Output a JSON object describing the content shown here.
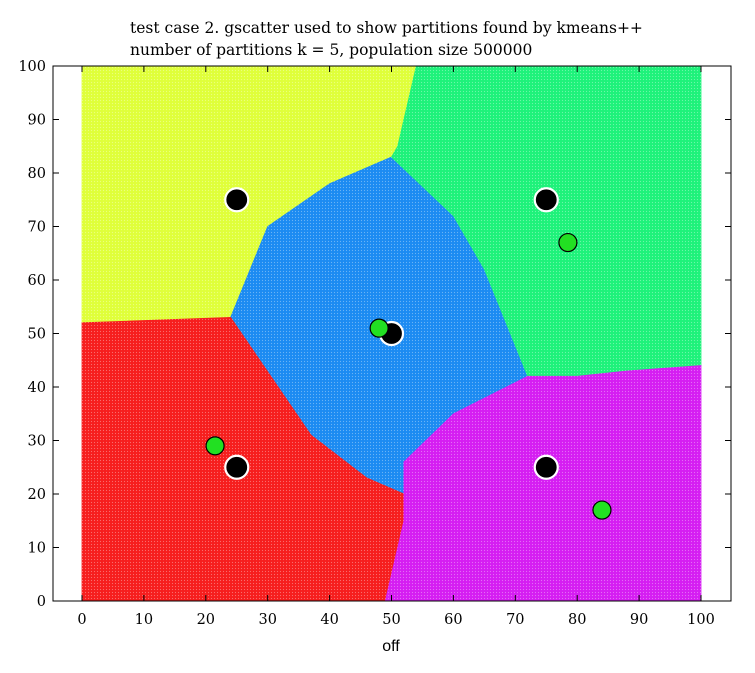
{
  "chart_data": {
    "type": "scatter",
    "title": "test case 2. gscatter used to show partitions found by kmeans++",
    "subtitle": "number of partitions k = 5, population size 500000",
    "xlabel": "off",
    "ylabel": "",
    "xlim": [
      0,
      100
    ],
    "ylim": [
      0,
      100
    ],
    "xticks": [
      "0",
      "10",
      "20",
      "30",
      "40",
      "50",
      "60",
      "70",
      "80",
      "90",
      "100"
    ],
    "yticks": [
      "0",
      "10",
      "20",
      "30",
      "40",
      "50",
      "60",
      "70",
      "80",
      "90",
      "100"
    ],
    "grid": false,
    "partitions": [
      {
        "color": "#dfff3a",
        "polygon": [
          [
            0,
            100
          ],
          [
            54,
            100
          ],
          [
            53,
            95
          ],
          [
            52,
            90
          ],
          [
            51,
            85
          ],
          [
            50,
            83
          ],
          [
            40,
            78
          ],
          [
            30,
            70
          ],
          [
            24,
            53
          ],
          [
            0,
            52
          ]
        ]
      },
      {
        "color": "#1c8bf2",
        "polygon": [
          [
            50,
            83
          ],
          [
            60,
            72
          ],
          [
            65,
            62
          ],
          [
            72,
            42
          ],
          [
            60,
            35
          ],
          [
            52,
            26
          ],
          [
            52,
            20
          ],
          [
            46,
            23
          ],
          [
            37,
            31
          ],
          [
            24,
            53
          ],
          [
            30,
            70
          ],
          [
            40,
            78
          ]
        ]
      },
      {
        "color": "#1ef27a",
        "polygon": [
          [
            54,
            100
          ],
          [
            100,
            100
          ],
          [
            100,
            44
          ],
          [
            88,
            43
          ],
          [
            80,
            42
          ],
          [
            72,
            42
          ],
          [
            65,
            62
          ],
          [
            60,
            72
          ],
          [
            50,
            83
          ],
          [
            51,
            85
          ],
          [
            52,
            90
          ],
          [
            53,
            95
          ]
        ]
      },
      {
        "color": "#f61e1e",
        "polygon": [
          [
            0,
            52
          ],
          [
            24,
            53
          ],
          [
            37,
            31
          ],
          [
            46,
            23
          ],
          [
            52,
            20
          ],
          [
            52,
            15
          ],
          [
            50,
            5
          ],
          [
            49,
            0
          ],
          [
            0,
            0
          ]
        ]
      },
      {
        "color": "#d51ef2",
        "polygon": [
          [
            49,
            0
          ],
          [
            100,
            0
          ],
          [
            100,
            44
          ],
          [
            88,
            43
          ],
          [
            80,
            42
          ],
          [
            72,
            42
          ],
          [
            60,
            35
          ],
          [
            52,
            26
          ],
          [
            52,
            20
          ],
          [
            52,
            15
          ],
          [
            50,
            5
          ]
        ]
      }
    ],
    "series": [
      {
        "marker": "black-circle",
        "color": "#000000",
        "x": [
          25,
          75,
          50,
          25,
          75
        ],
        "y": [
          75,
          75,
          50,
          25,
          25
        ]
      },
      {
        "marker": "green-circle",
        "color": "#22e022",
        "x": [
          78.5,
          48,
          21.5,
          84
        ],
        "y": [
          67,
          51,
          29,
          17
        ]
      }
    ]
  }
}
